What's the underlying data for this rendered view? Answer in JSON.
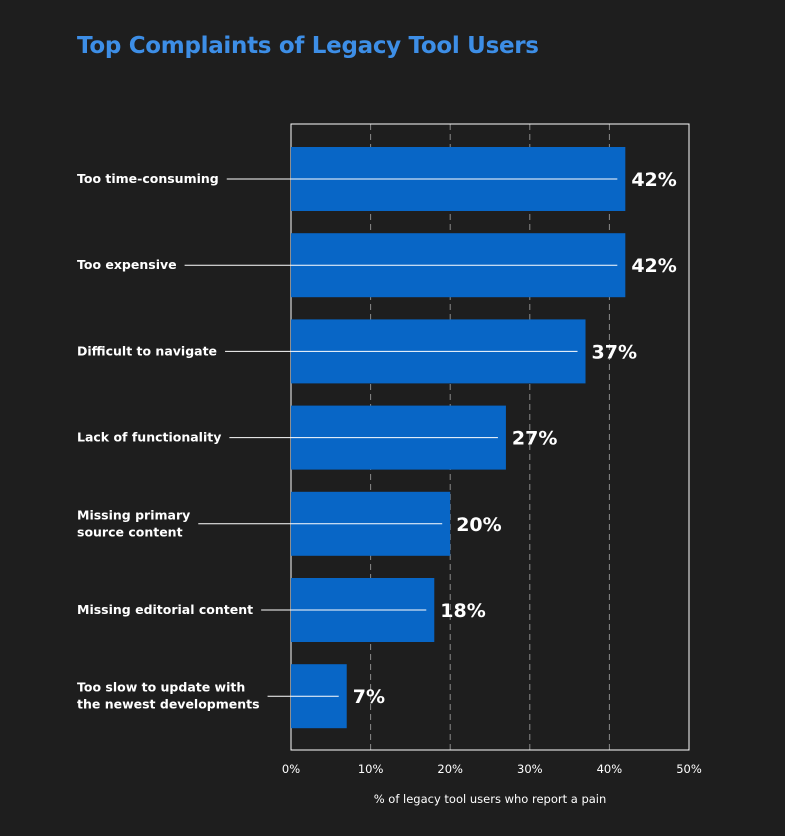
{
  "chart_data": {
    "type": "bar",
    "orientation": "horizontal",
    "title": "Top Complaints of Legacy Tool Users",
    "categories": [
      [
        "Too time-consuming"
      ],
      [
        "Too expensive"
      ],
      [
        "Difficult to navigate"
      ],
      [
        "Lack of functionality"
      ],
      [
        "Missing primary",
        "source content"
      ],
      [
        "Missing editorial content"
      ],
      [
        "Too slow to update with",
        "the newest developments"
      ]
    ],
    "values": [
      42,
      42,
      37,
      27,
      20,
      18,
      7
    ],
    "value_labels": [
      "42%",
      "42%",
      "37%",
      "27%",
      "20%",
      "18%",
      "7%"
    ],
    "xlim": [
      0,
      50
    ],
    "xticks": [
      0,
      10,
      20,
      30,
      40,
      50
    ],
    "xtick_labels": [
      "0%",
      "10%",
      "20%",
      "30%",
      "40%",
      "50%"
    ],
    "xlabel": "% of legacy tool users who report a pain",
    "ylabel": "",
    "grid": "vertical dashed",
    "colors": {
      "bar": "#0866c6",
      "title": "#3d8ee6",
      "background": "#1e1e1e",
      "text": "#ffffff",
      "grid": "#8a8a8a"
    }
  }
}
